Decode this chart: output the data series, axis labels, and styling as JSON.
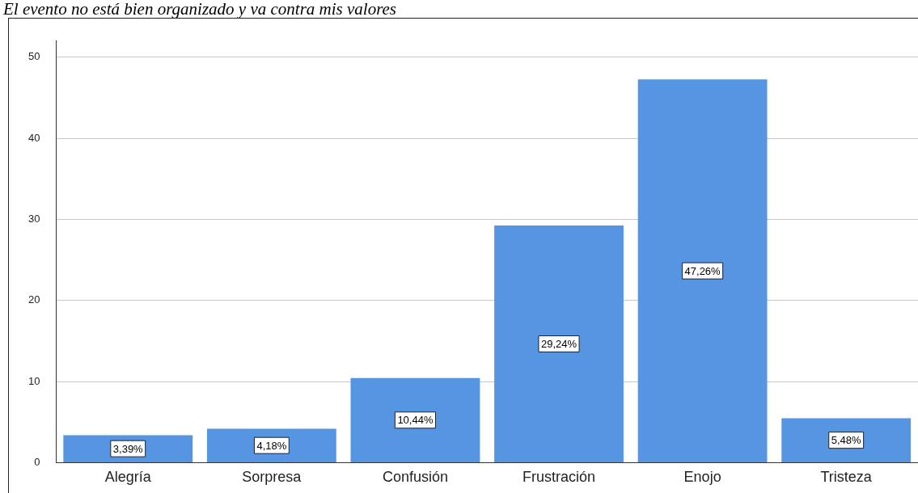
{
  "chart_data": {
    "type": "bar",
    "title": "El evento no está bien organizado y va contra mis valores",
    "categories": [
      "Alegría",
      "Sorpresa",
      "Confusión",
      "Frustración",
      "Enojo",
      "Tristeza"
    ],
    "values": [
      3.39,
      4.18,
      10.44,
      29.24,
      47.26,
      5.48
    ],
    "value_labels": [
      "3,39%",
      "4,18%",
      "10,44%",
      "29,24%",
      "47,26%",
      "5,48%"
    ],
    "color": "#5595e2",
    "ylim": [
      0,
      52
    ],
    "yticks": [
      0,
      10,
      20,
      30,
      40,
      50
    ],
    "grid": "y",
    "legend": false
  }
}
